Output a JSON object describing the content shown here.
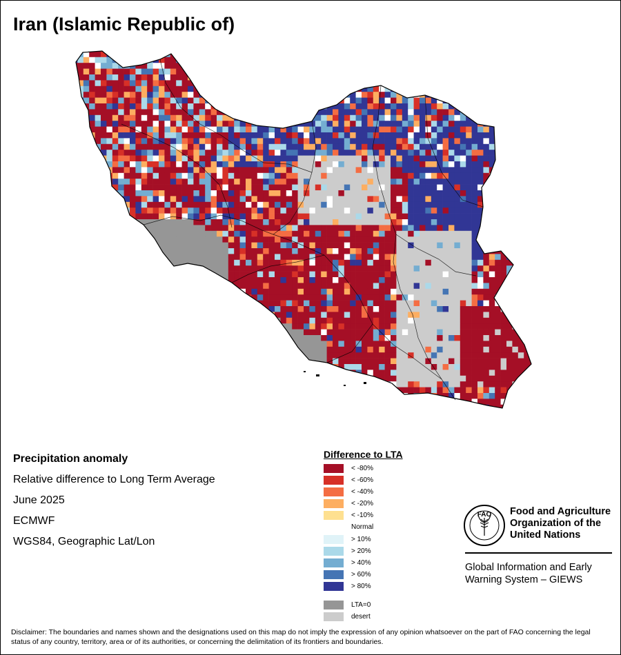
{
  "title": "Iran (Islamic Republic of)",
  "info": {
    "heading": "Precipitation anomaly",
    "subtitle": "Relative difference to Long Term Average",
    "period": "June 2025",
    "source": "ECMWF",
    "projection": "WGS84, Geographic Lat/Lon"
  },
  "legend": {
    "title": "Difference to LTA",
    "items": [
      {
        "label": "< -80%",
        "color": "#a50f26"
      },
      {
        "label": "< -60%",
        "color": "#d73027"
      },
      {
        "label": "< -40%",
        "color": "#f46d43"
      },
      {
        "label": "< -20%",
        "color": "#fdae61"
      },
      {
        "label": "< -10%",
        "color": "#fee090"
      },
      {
        "label": "Normal",
        "color": "#ffffff"
      },
      {
        "label": "> 10%",
        "color": "#e0f3f8"
      },
      {
        "label": "> 20%",
        "color": "#abd9e9"
      },
      {
        "label": "> 40%",
        "color": "#74add1"
      },
      {
        "label": "> 60%",
        "color": "#4575b4"
      },
      {
        "label": "> 80%",
        "color": "#313695"
      }
    ],
    "extra": [
      {
        "label": "LTA=0",
        "color": "#969696"
      },
      {
        "label": "desert",
        "color": "#cccccc"
      }
    ]
  },
  "organization": {
    "logo_text": "FAO",
    "name": "Food and Agriculture Organization of the United Nations",
    "system": "Global Information and Early Warning System – GIEWS"
  },
  "disclaimer": "Disclaimer: The boundaries and names shown and the designations used on this map do not imply the expression of any opinion whatsoever on the part of FAO concerning the legal status of any country, territory, area or of its authorities, or concerning the delimitation of its frontiers and boundaries.",
  "map": {
    "colors": {
      "dry_extreme": "#a50f26",
      "dry_strong": "#d73027",
      "dry_moderate": "#f46d43",
      "dry_light": "#fdae61",
      "normal": "#ffffff",
      "wet_light": "#abd9e9",
      "wet_moderate": "#74add1",
      "wet_strong": "#4575b4",
      "wet_extreme": "#313695",
      "lta_zero": "#969696",
      "desert": "#cccccc",
      "border": "#000000"
    }
  }
}
